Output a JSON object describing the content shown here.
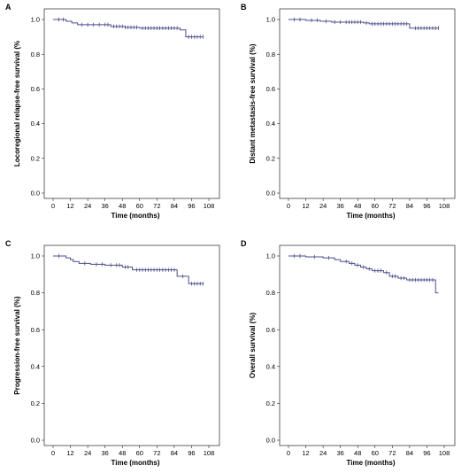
{
  "chart_data": [
    {
      "panel": "A",
      "type": "line",
      "ylabel": "Locoregional relapse-free survival (%",
      "xlabel": "Time (months)",
      "xticks": [
        0,
        12,
        24,
        36,
        48,
        60,
        72,
        84,
        96,
        108
      ],
      "yticks": [
        "0.0",
        "0.2",
        "0.4",
        "0.6",
        "0.8",
        "1.0"
      ],
      "xlim": [
        0,
        108
      ],
      "ylim": [
        0,
        1.0
      ],
      "color": "#4a4f8c",
      "steps": [
        [
          0,
          1.0
        ],
        [
          9,
          0.99
        ],
        [
          13,
          0.98
        ],
        [
          17,
          0.97
        ],
        [
          40,
          0.96
        ],
        [
          50,
          0.955
        ],
        [
          60,
          0.95
        ],
        [
          88,
          0.94
        ],
        [
          92,
          0.9
        ],
        [
          104,
          0.9
        ]
      ],
      "censors": [
        4,
        7,
        20,
        24,
        28,
        32,
        36,
        38,
        42,
        44,
        46,
        48,
        50,
        52,
        54,
        56,
        58,
        62,
        64,
        66,
        68,
        70,
        72,
        74,
        76,
        78,
        80,
        82,
        84,
        86,
        94,
        96,
        98,
        100,
        102,
        104
      ]
    },
    {
      "panel": "B",
      "type": "line",
      "ylabel": "Distant metastasis-free survival (%)",
      "xlabel": "Time (months)",
      "xticks": [
        0,
        12,
        24,
        36,
        48,
        60,
        72,
        84,
        96,
        108
      ],
      "yticks": [
        "0.0",
        "0.2",
        "0.4",
        "0.6",
        "0.8",
        "1.0"
      ],
      "xlim": [
        0,
        108
      ],
      "ylim": [
        0,
        1.0
      ],
      "color": "#4a4f8c",
      "steps": [
        [
          0,
          1.0
        ],
        [
          12,
          0.995
        ],
        [
          22,
          0.99
        ],
        [
          30,
          0.985
        ],
        [
          52,
          0.98
        ],
        [
          56,
          0.975
        ],
        [
          84,
          0.95
        ],
        [
          104,
          0.95
        ]
      ],
      "censors": [
        4,
        8,
        16,
        20,
        26,
        32,
        36,
        40,
        42,
        44,
        46,
        48,
        50,
        54,
        58,
        60,
        62,
        64,
        66,
        68,
        70,
        72,
        74,
        76,
        78,
        80,
        82,
        88,
        90,
        92,
        94,
        96,
        98,
        100,
        102,
        104
      ]
    },
    {
      "panel": "C",
      "type": "line",
      "ylabel": "Progression-free survival (%)",
      "xlabel": "Time (months)",
      "xticks": [
        0,
        12,
        24,
        36,
        48,
        60,
        72,
        84,
        96,
        108
      ],
      "yticks": [
        "0.0",
        "0.2",
        "0.4",
        "0.6",
        "0.8",
        "1.0"
      ],
      "xlim": [
        0,
        108
      ],
      "ylim": [
        0,
        1.0
      ],
      "color": "#4a4f8c",
      "steps": [
        [
          0,
          1.0
        ],
        [
          9,
          0.99
        ],
        [
          12,
          0.98
        ],
        [
          14,
          0.97
        ],
        [
          18,
          0.96
        ],
        [
          26,
          0.955
        ],
        [
          36,
          0.95
        ],
        [
          48,
          0.94
        ],
        [
          55,
          0.925
        ],
        [
          86,
          0.89
        ],
        [
          94,
          0.85
        ],
        [
          104,
          0.85
        ]
      ],
      "censors": [
        4,
        22,
        30,
        34,
        40,
        44,
        46,
        50,
        52,
        58,
        60,
        62,
        64,
        66,
        68,
        70,
        72,
        74,
        76,
        78,
        80,
        82,
        84,
        90,
        96,
        98,
        100,
        102,
        104
      ]
    },
    {
      "panel": "D",
      "type": "line",
      "ylabel": "Overall survival (%)",
      "xlabel": "Time (months)",
      "xticks": [
        0,
        12,
        24,
        36,
        48,
        60,
        72,
        84,
        96,
        108
      ],
      "yticks": [
        "0.0",
        "0.2",
        "0.4",
        "0.6",
        "0.8",
        "1.0"
      ],
      "xlim": [
        0,
        108
      ],
      "ylim": [
        0,
        1.0
      ],
      "color": "#4a4f8c",
      "steps": [
        [
          0,
          1.0
        ],
        [
          12,
          0.995
        ],
        [
          24,
          0.99
        ],
        [
          32,
          0.98
        ],
        [
          36,
          0.97
        ],
        [
          42,
          0.96
        ],
        [
          46,
          0.95
        ],
        [
          50,
          0.94
        ],
        [
          54,
          0.93
        ],
        [
          58,
          0.92
        ],
        [
          66,
          0.91
        ],
        [
          70,
          0.89
        ],
        [
          76,
          0.88
        ],
        [
          82,
          0.87
        ],
        [
          102,
          0.8
        ],
        [
          104,
          0.8
        ]
      ],
      "censors": [
        4,
        8,
        18,
        28,
        40,
        44,
        48,
        52,
        56,
        60,
        62,
        64,
        68,
        72,
        74,
        78,
        80,
        84,
        86,
        88,
        90,
        92,
        94,
        96,
        98,
        100
      ]
    }
  ]
}
